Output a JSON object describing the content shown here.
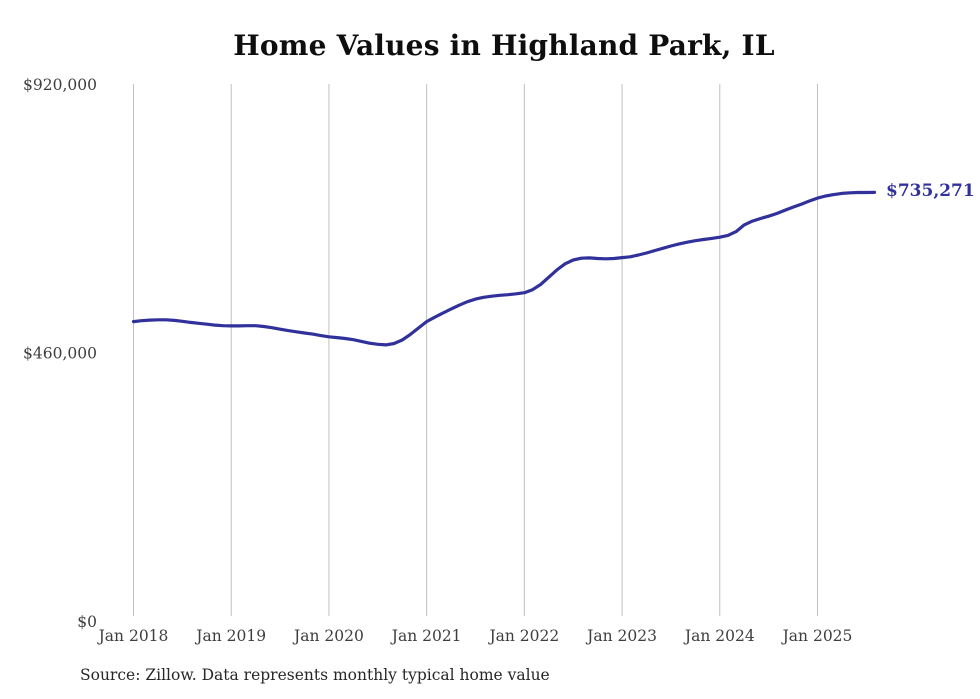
{
  "title": "Home Values in Highland Park, IL",
  "end_label": "$735,271",
  "source_note": "Source: Zillow. Data represents monthly typical home value",
  "colors": {
    "line": "#31319b",
    "end_label": "#31319b",
    "grid": "#c0c0c0",
    "tick": "#3e3e3e",
    "title": "#0e0e0e",
    "source": "#272727"
  },
  "chart_data": {
    "type": "line",
    "title": "Home Values in Highland Park, IL",
    "series_name": "Monthly typical home value",
    "x_start": "2018-01",
    "x_end": "2025-08",
    "x_frequency": "monthly",
    "x_tick_labels": [
      "Jan 2018",
      "Jan 2019",
      "Jan 2020",
      "Jan 2021",
      "Jan 2022",
      "Jan 2023",
      "Jan 2024",
      "Jan 2025"
    ],
    "y_ticks": [
      {
        "label": "$920,000",
        "value": 920000
      },
      {
        "label": "$460,000",
        "value": 460000
      },
      {
        "label": "$0",
        "value": 0
      }
    ],
    "ylim": [
      0,
      920000
    ],
    "grid": "vertical-only",
    "legend": "none",
    "final_value": 735271,
    "values": [
      514000,
      515500,
      516500,
      517000,
      517000,
      516000,
      514500,
      512500,
      511000,
      509500,
      508000,
      507000,
      506500,
      506500,
      507000,
      507000,
      505500,
      503500,
      501000,
      498500,
      496500,
      494500,
      492500,
      490000,
      488000,
      486500,
      485000,
      483000,
      480000,
      477000,
      475000,
      474000,
      476500,
      482500,
      492000,
      503000,
      514000,
      521500,
      528500,
      535500,
      542000,
      548000,
      552500,
      555500,
      557500,
      559000,
      560000,
      561500,
      563500,
      568500,
      577500,
      590000,
      602500,
      613000,
      619500,
      622500,
      623000,
      622000,
      621500,
      622000,
      623500,
      625000,
      628000,
      631500,
      635500,
      639500,
      643500,
      647000,
      650000,
      652500,
      654500,
      656500,
      658500,
      661500,
      668000,
      679500,
      686000,
      690500,
      694500,
      699000,
      704500,
      710000,
      715000,
      720500,
      725500,
      729000,
      731500,
      733500,
      734500,
      735000,
      735100,
      735271
    ]
  }
}
